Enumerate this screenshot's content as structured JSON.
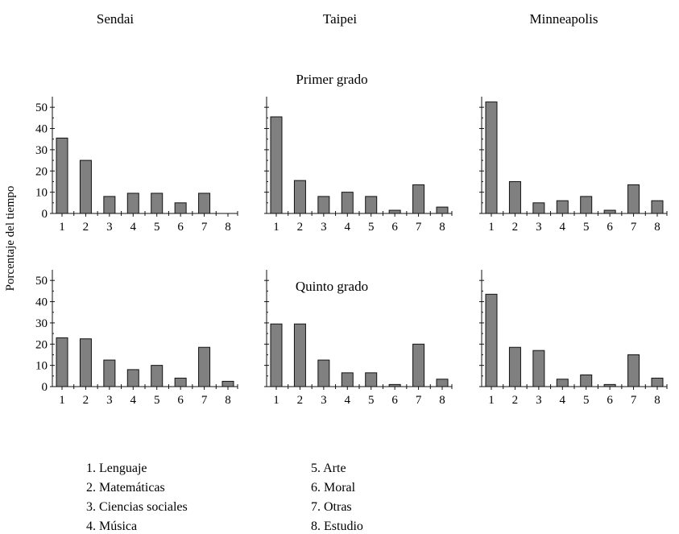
{
  "figure": {
    "row_titles": [
      "Primer grado",
      "Quinto grado"
    ],
    "ylabel": "Porcentaje del tiempo",
    "legend": [
      "1. Lenguaje",
      "2. Matemáticas",
      "3. Ciencias sociales",
      "4. Música",
      "5. Arte",
      "6. Moral",
      "7. Otras",
      "8. Estudio"
    ],
    "colors": {
      "bar_fill": "#808080",
      "bar_stroke": "#111111",
      "axis": "#111111"
    }
  },
  "chart_data": [
    {
      "type": "bar",
      "title": "Sendai",
      "subtitle": "Primer grado",
      "xlabel": "",
      "ylabel": "Porcentaje del tiempo",
      "categories": [
        "1",
        "2",
        "3",
        "4",
        "5",
        "6",
        "7",
        "8"
      ],
      "values": [
        35.5,
        25,
        8,
        9.5,
        9.5,
        5,
        9.5,
        0
      ],
      "ylim": [
        0,
        55
      ],
      "yticks": [
        0,
        10,
        20,
        30,
        40,
        50
      ],
      "grid": false
    },
    {
      "type": "bar",
      "title": "Taipei",
      "subtitle": "Primer grado",
      "xlabel": "",
      "ylabel": "",
      "categories": [
        "1",
        "2",
        "3",
        "4",
        "5",
        "6",
        "7",
        "8"
      ],
      "values": [
        45.5,
        15.5,
        8,
        10,
        8,
        1.5,
        13.5,
        3
      ],
      "ylim": [
        0,
        55
      ],
      "yticks": [
        0,
        10,
        20,
        30,
        40,
        50
      ],
      "grid": false
    },
    {
      "type": "bar",
      "title": "Minneapolis",
      "subtitle": "Primer grado",
      "xlabel": "",
      "ylabel": "",
      "categories": [
        "1",
        "2",
        "3",
        "4",
        "5",
        "6",
        "7",
        "8"
      ],
      "values": [
        52.5,
        15,
        5,
        6,
        8,
        1.5,
        13.5,
        6
      ],
      "ylim": [
        0,
        55
      ],
      "yticks": [
        0,
        10,
        20,
        30,
        40,
        50
      ],
      "grid": false
    },
    {
      "type": "bar",
      "title": "Sendai",
      "subtitle": "Quinto grado",
      "xlabel": "",
      "ylabel": "Porcentaje del tiempo",
      "categories": [
        "1",
        "2",
        "3",
        "4",
        "5",
        "6",
        "7",
        "8"
      ],
      "values": [
        23,
        22.5,
        12.5,
        8,
        10,
        4,
        18.5,
        2.5
      ],
      "ylim": [
        0,
        55
      ],
      "yticks": [
        0,
        10,
        20,
        30,
        40,
        50
      ],
      "grid": false
    },
    {
      "type": "bar",
      "title": "Taipei",
      "subtitle": "Quinto grado",
      "xlabel": "",
      "ylabel": "",
      "categories": [
        "1",
        "2",
        "3",
        "4",
        "5",
        "6",
        "7",
        "8"
      ],
      "values": [
        29.5,
        29.5,
        12.5,
        6.5,
        6.5,
        1,
        20,
        3.5
      ],
      "ylim": [
        0,
        55
      ],
      "yticks": [
        0,
        10,
        20,
        30,
        40,
        50
      ],
      "grid": false
    },
    {
      "type": "bar",
      "title": "Minneapolis",
      "subtitle": "Quinto grado",
      "xlabel": "",
      "ylabel": "",
      "categories": [
        "1",
        "2",
        "3",
        "4",
        "5",
        "6",
        "7",
        "8"
      ],
      "values": [
        43.5,
        18.5,
        17,
        3.5,
        5.5,
        1,
        15,
        4
      ],
      "ylim": [
        0,
        55
      ],
      "yticks": [
        0,
        10,
        20,
        30,
        40,
        50
      ],
      "grid": false
    }
  ]
}
